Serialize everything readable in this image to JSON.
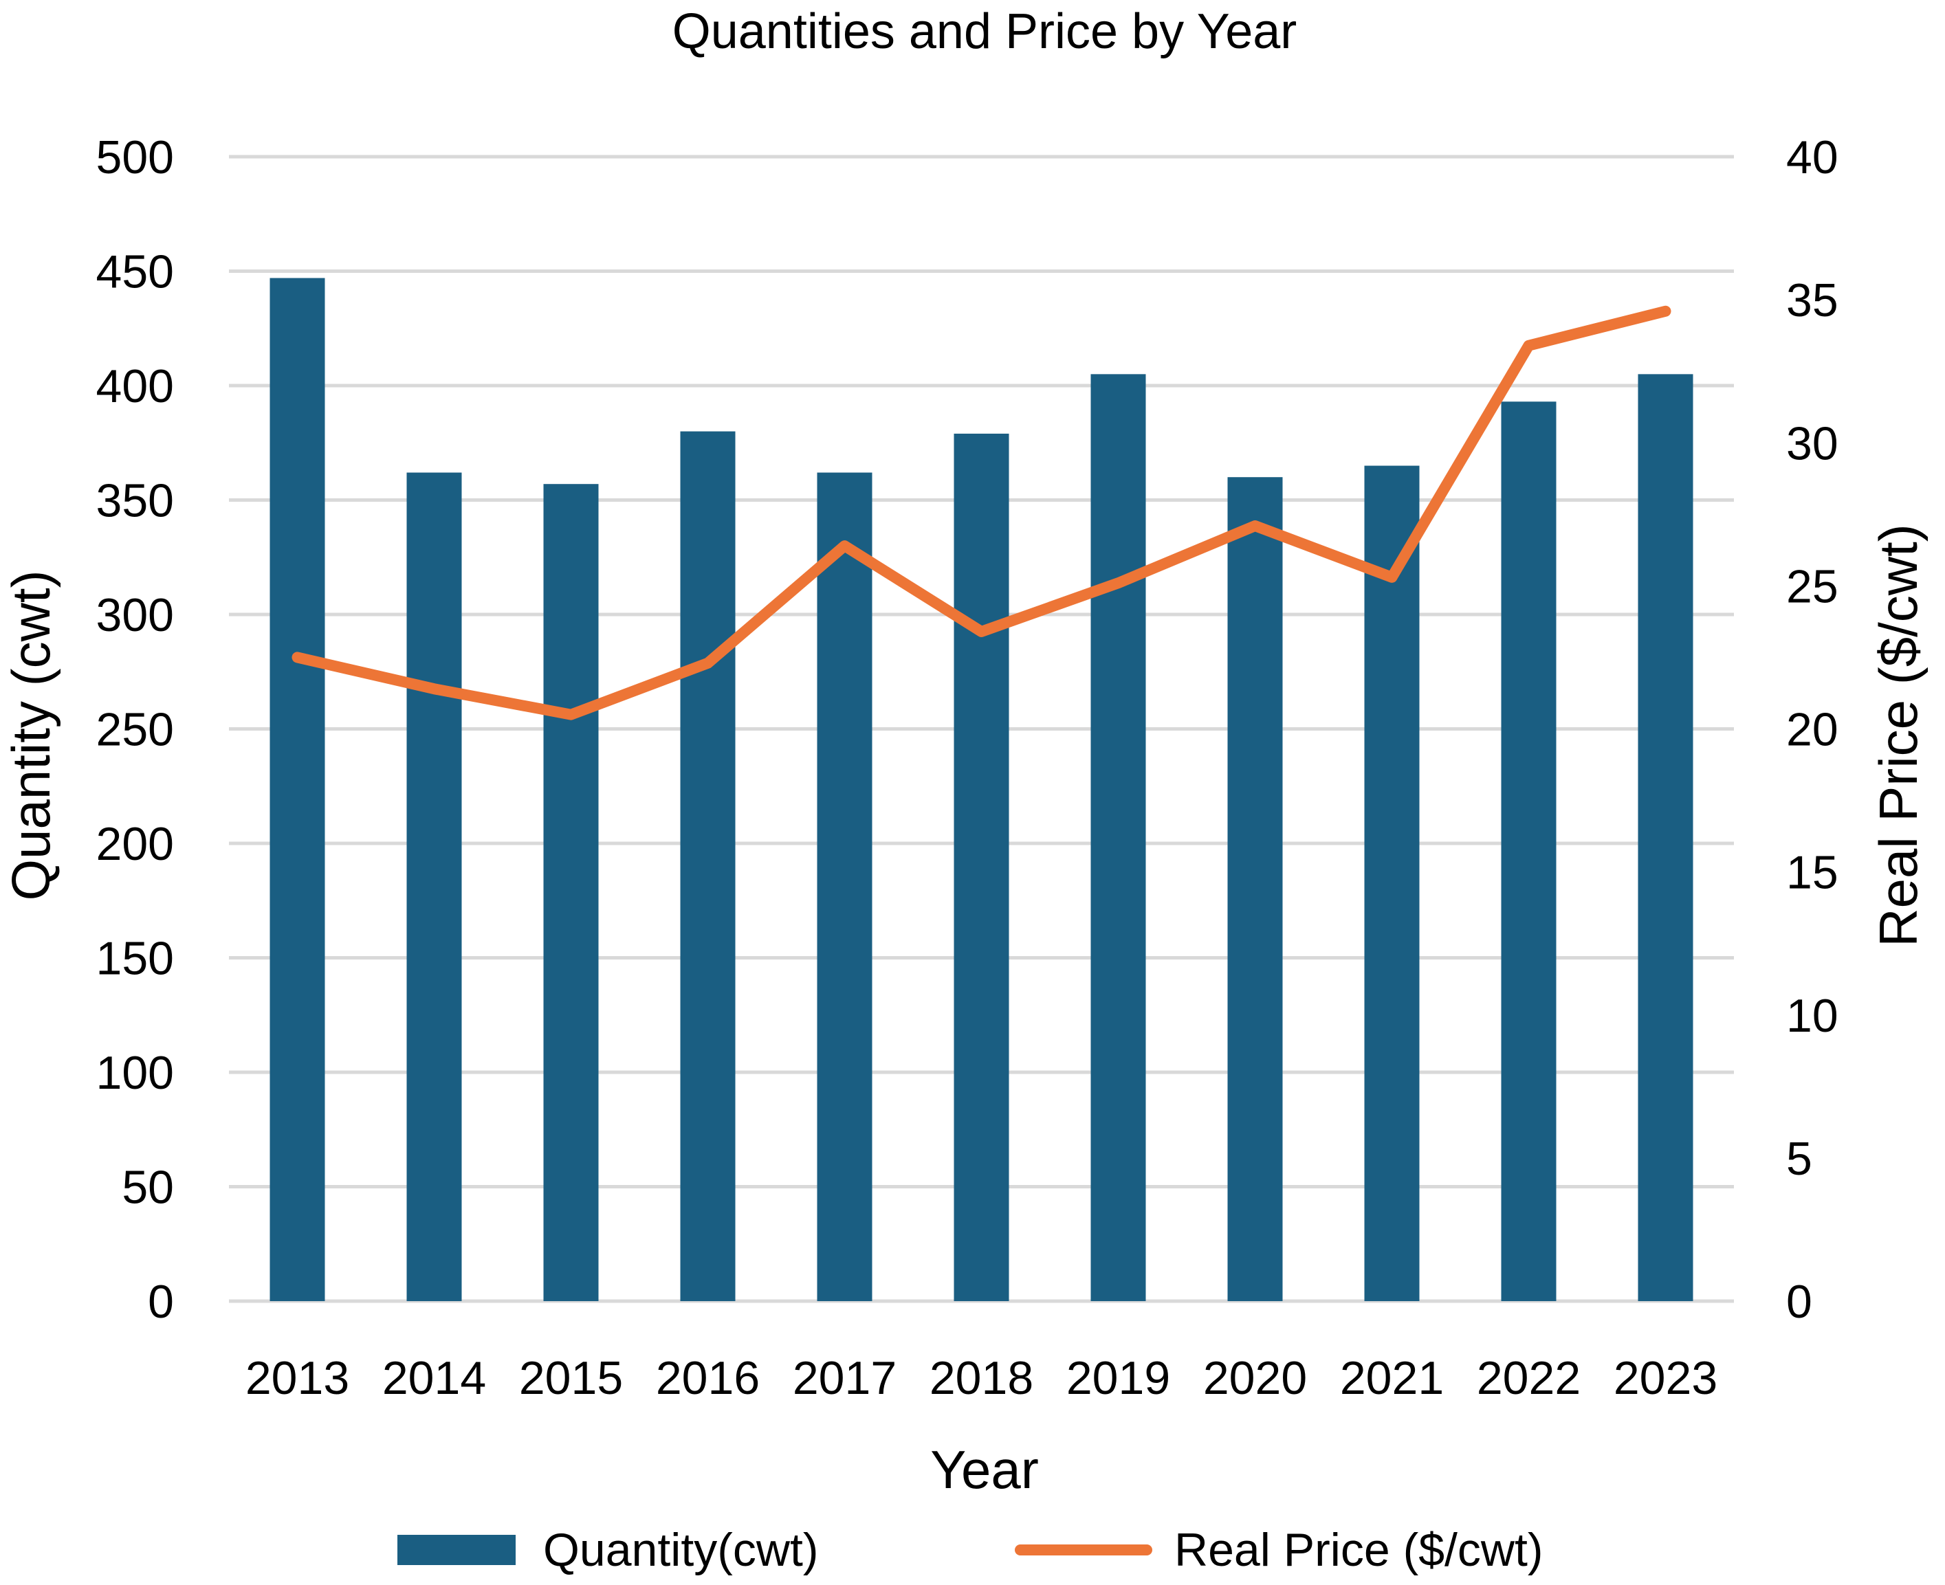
{
  "chart_data": {
    "type": "bar",
    "title": "Quantities and Price by Year",
    "xlabel": "Year",
    "ylabel": "Quantity (cwt)",
    "y2label": "Real Price ($/cwt)",
    "categories": [
      "2013",
      "2014",
      "2015",
      "2016",
      "2017",
      "2018",
      "2019",
      "2020",
      "2021",
      "2022",
      "2023"
    ],
    "ylim": [
      0,
      500
    ],
    "y_ticks": [
      0,
      50,
      100,
      150,
      200,
      250,
      300,
      350,
      400,
      450,
      500
    ],
    "y2lim": [
      0,
      40
    ],
    "y2_ticks": [
      0,
      5,
      10,
      15,
      20,
      25,
      30,
      35,
      40
    ],
    "grid": true,
    "legend_position": "bottom",
    "series": [
      {
        "name": "Quantity(cwt)",
        "type": "bar",
        "axis": "left",
        "color": "#1a5e82",
        "values": [
          447,
          362,
          357,
          380,
          362,
          379,
          405,
          360,
          365,
          393,
          405
        ]
      },
      {
        "name": "Real Price ($/cwt)",
        "type": "line",
        "axis": "right",
        "color": "#ed7536",
        "values": [
          22.5,
          21.4,
          20.5,
          22.3,
          26.4,
          23.4,
          25.1,
          27.1,
          25.3,
          33.4,
          34.6
        ]
      }
    ]
  }
}
